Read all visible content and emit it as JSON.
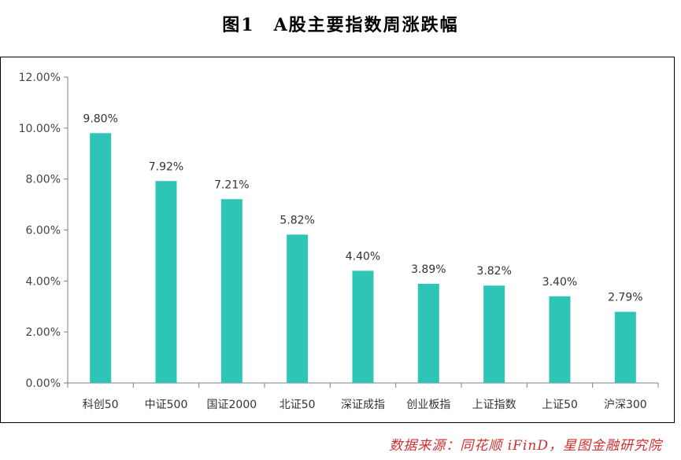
{
  "title": "图1　A股主要指数周涨跌幅",
  "source": "数据来源：同花顺 iFinD，星图金融研究院",
  "colors": {
    "bar": "#2ec4b6",
    "axis": "#7f7f7f"
  },
  "chart_data": {
    "type": "bar",
    "categories": [
      "科创50",
      "中证500",
      "国证2000",
      "北证50",
      "深证成指",
      "创业板指",
      "上证指数",
      "上证50",
      "沪深300"
    ],
    "values": [
      9.8,
      7.92,
      7.21,
      5.82,
      4.4,
      3.89,
      3.82,
      3.4,
      2.79
    ],
    "data_labels": [
      "9.80%",
      "7.92%",
      "7.21%",
      "5.82%",
      "4.40%",
      "3.89%",
      "3.82%",
      "3.40%",
      "2.79%"
    ],
    "y_ticks": [
      0,
      2,
      4,
      6,
      8,
      10,
      12
    ],
    "y_tick_labels": [
      "0.00%",
      "2.00%",
      "4.00%",
      "6.00%",
      "8.00%",
      "10.00%",
      "12.00%"
    ],
    "ylim": [
      0,
      12
    ],
    "grid": false,
    "legend": "none"
  }
}
